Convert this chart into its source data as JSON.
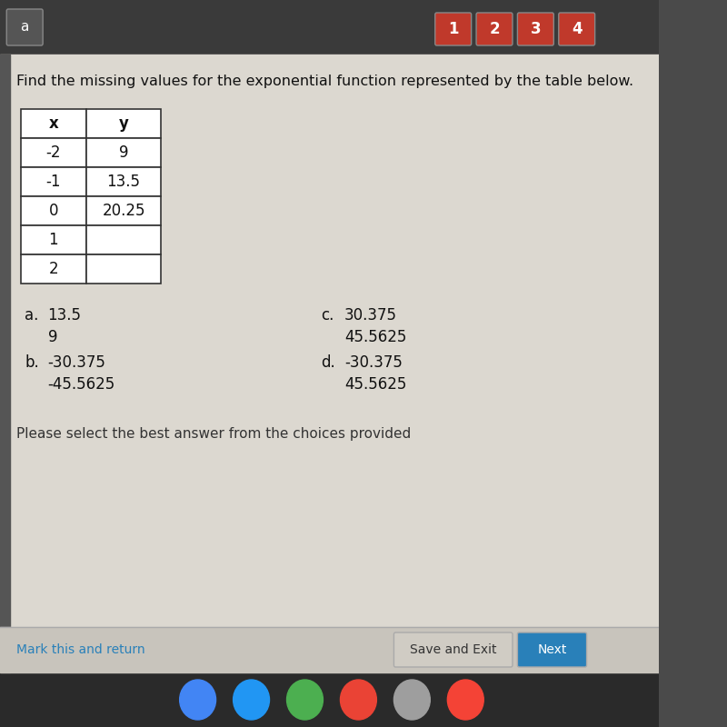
{
  "title": "Find the missing values for the exponential function represented by the table below.",
  "table_headers": [
    "x",
    "y"
  ],
  "table_rows": [
    [
      "-2",
      "9"
    ],
    [
      "-1",
      "13.5"
    ],
    [
      "0",
      "20.25"
    ],
    [
      "1",
      ""
    ],
    [
      "2",
      ""
    ]
  ],
  "choices": [
    {
      "label": "a.",
      "line1": "13.5",
      "line2": "9"
    },
    {
      "label": "b.",
      "line1": "-30.375",
      "line2": "-45.5625"
    },
    {
      "label": "c.",
      "line1": "30.375",
      "line2": "45.5625"
    },
    {
      "label": "d.",
      "line1": "-30.375",
      "line2": "45.5625"
    }
  ],
  "footer_text": "Please select the best answer from the choices provided",
  "bottom_link": "Mark this and return",
  "bottom_btn1": "Save and Exit",
  "bottom_btn2": "Next",
  "bg_color_top": "#4a4a4a",
  "bg_color_main": "#dcd8d0",
  "nav_btn_color": "#c0392b",
  "table_bg": "#ffffff",
  "table_border": "#333333",
  "title_color": "#111111",
  "choice_color": "#111111",
  "footer_color": "#333333",
  "link_color": "#2980b9",
  "save_btn_bg": "#d0ccc4",
  "next_btn_bg": "#2980b9"
}
